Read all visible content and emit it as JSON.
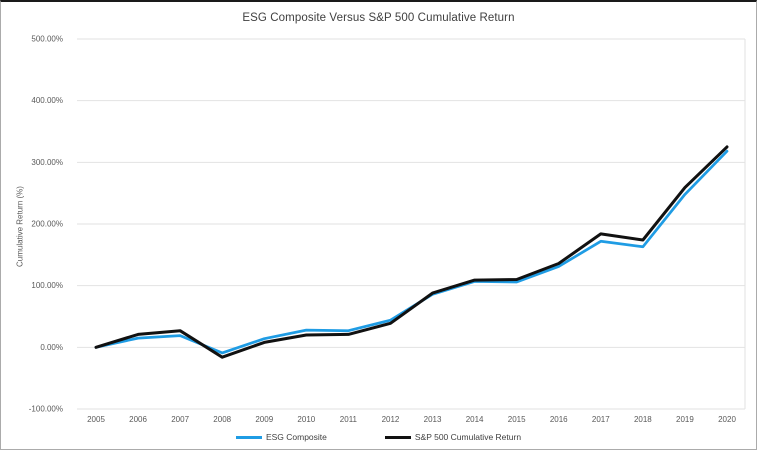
{
  "chart_data": {
    "type": "line",
    "title": "ESG Composite Versus S&P 500 Cumulative Return",
    "xlabel": "",
    "ylabel": "Cumulative Return (%)",
    "categories": [
      "2005",
      "2006",
      "2007",
      "2008",
      "2009",
      "2010",
      "2011",
      "2012",
      "2013",
      "2014",
      "2015",
      "2016",
      "2017",
      "2018",
      "2019",
      "2020"
    ],
    "series": [
      {
        "name": "ESG Composite",
        "color": "#1F9CE4",
        "values": [
          0,
          15,
          19,
          -9,
          14,
          28,
          27,
          44,
          86,
          107,
          106,
          131,
          172,
          163,
          248,
          318
        ]
      },
      {
        "name": "S&P 500 Cumulative Return",
        "color": "#111111",
        "values": [
          0,
          21,
          27,
          -16,
          8,
          20,
          21,
          39,
          88,
          109,
          110,
          136,
          184,
          174,
          259,
          325
        ]
      }
    ],
    "ylim": [
      -100,
      500
    ],
    "yticks": {
      "values": [
        500,
        400,
        300,
        200,
        100,
        0,
        -100
      ],
      "labels": [
        "500.00%",
        "400.00%",
        "300.00%",
        "200.00%",
        "100.00%",
        "0.00%",
        "-100.00%"
      ]
    },
    "grid": "horizontal",
    "gridline_color": "#e2e2e2",
    "tick_label_color": "#595959",
    "legend_position": "bottom"
  }
}
